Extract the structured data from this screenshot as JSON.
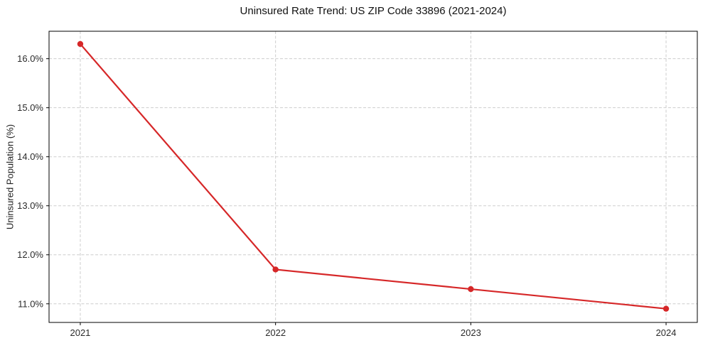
{
  "chart_data": {
    "type": "line",
    "title": "Uninsured Rate Trend: US ZIP Code 33896 (2021-2024)",
    "xlabel": "",
    "ylabel": "Uninsured Population (%)",
    "categories": [
      "2021",
      "2022",
      "2023",
      "2024"
    ],
    "series": [
      {
        "name": "Uninsured rate",
        "values": [
          16.3,
          11.7,
          11.3,
          10.9
        ],
        "color": "#d62728",
        "marker": "circle"
      }
    ],
    "yticks": [
      11.0,
      12.0,
      13.0,
      14.0,
      15.0,
      16.0
    ],
    "ytick_labels": [
      "11.0%",
      "12.0%",
      "13.0%",
      "14.0%",
      "15.0%",
      "16.0%"
    ],
    "ylim": [
      10.62,
      16.56
    ],
    "xlim": [
      -0.16,
      3.16
    ],
    "grid": true,
    "grid_style": "dashed",
    "grid_color": "#cdcdcd",
    "spine_color": "#000000",
    "tick_color": "#000000",
    "background": "#ffffff",
    "legend_position": "none"
  }
}
